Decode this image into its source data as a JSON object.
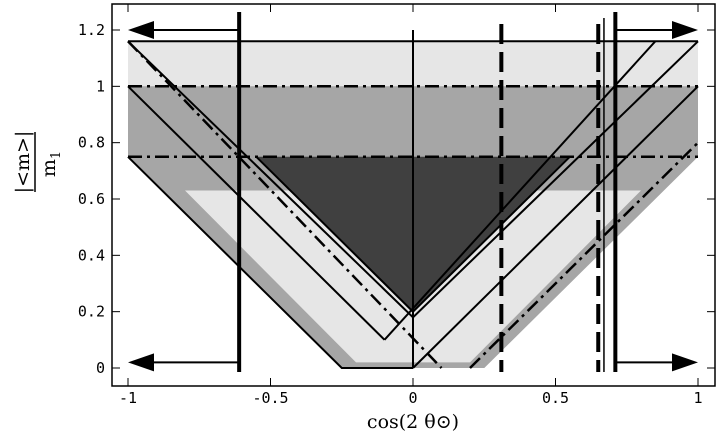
{
  "chart_data": {
    "type": "area",
    "xlabel": "cos(2 θ⊙)",
    "ylabel_numerator": "|<m>|",
    "ylabel_denominator": "m",
    "ylabel_subscript": "1",
    "xlim": [
      -1,
      1
    ],
    "ylim": [
      0,
      1.2
    ],
    "x_ticks": [
      -1,
      -0.5,
      0,
      0.5,
      1
    ],
    "x_tick_labels": [
      "-1",
      "-0.5",
      "0",
      "0.5",
      "1"
    ],
    "y_ticks": [
      0,
      0.2,
      0.4,
      0.6,
      0.8,
      1,
      1.2
    ],
    "y_tick_labels": [
      "0",
      "0.2",
      "0.4",
      "0.6",
      "0.8",
      "1",
      "1.2"
    ],
    "grid": false,
    "colors": {
      "light_band": "#e6e6e6",
      "medium_band": "#a6a6a6",
      "dark_band": "#404040",
      "lines": "#000000"
    },
    "regions": [
      {
        "name": "light-region",
        "fill": "light_band",
        "points": [
          [
            -1,
            1.16
          ],
          [
            1,
            1.16
          ],
          [
            1,
            0
          ],
          [
            -1,
            0
          ]
        ]
      },
      {
        "name": "white-triangle-left",
        "fill": "white",
        "points": [
          [
            -1,
            0
          ],
          [
            -1,
            0.75
          ],
          [
            -0.2,
            0
          ]
        ]
      },
      {
        "name": "white-triangle-right",
        "fill": "white",
        "points": [
          [
            0.2,
            0
          ],
          [
            1,
            0.75
          ],
          [
            1,
            0
          ]
        ]
      },
      {
        "name": "medium-region",
        "fill": "medium_band",
        "points": [
          [
            -1,
            1
          ],
          [
            1,
            1
          ],
          [
            1,
            0.75
          ],
          [
            0.25,
            0
          ],
          [
            -0.25,
            0
          ],
          [
            -1,
            0.75
          ]
        ]
      },
      {
        "name": "light-middle-region",
        "fill": "light_band",
        "points": [
          [
            -0.2,
            0.02
          ],
          [
            0.2,
            0.02
          ],
          [
            0.8,
            0.63
          ],
          [
            -0.8,
            0.63
          ]
        ]
      },
      {
        "name": "dark-region",
        "fill": "dark_band",
        "points": [
          [
            -0.55,
            0.75
          ],
          [
            0.55,
            0.75
          ],
          [
            0,
            0.2
          ]
        ]
      }
    ],
    "solid_lines": [
      [
        [
          -1,
          1.16
        ],
        [
          0,
          0.18
        ],
        [
          1,
          1.16
        ]
      ],
      [
        [
          -1,
          1.16
        ],
        [
          1,
          1.16
        ]
      ],
      [
        [
          -1,
          1
        ],
        [
          -0.1,
          0.1
        ]
      ],
      [
        [
          -1,
          0.75
        ],
        [
          -0.25,
          0
        ],
        [
          0,
          0
        ]
      ],
      [
        [
          0,
          0
        ],
        [
          1,
          1
        ]
      ],
      [
        [
          -0.1,
          0.1
        ],
        [
          0.85,
          1.16
        ]
      ],
      [
        [
          -0.55,
          0.75
        ],
        [
          0,
          0.2
        ],
        [
          0.55,
          0.75
        ]
      ],
      [
        [
          0,
          0
        ],
        [
          0,
          1.2
        ]
      ]
    ],
    "dash_dot_lines": [
      [
        [
          -1,
          1.16
        ],
        [
          0.1,
          0
        ]
      ],
      [
        [
          -1,
          1
        ],
        [
          1,
          1
        ]
      ],
      [
        [
          -1,
          0.75
        ],
        [
          1,
          0.75
        ]
      ],
      [
        [
          0.2,
          0
        ],
        [
          0.55,
          0.35
        ],
        [
          1,
          0.8
        ]
      ]
    ],
    "vertical_markers": [
      {
        "x": -0.61,
        "style": "thick-solid"
      },
      {
        "x": 0.31,
        "style": "thick-dashed"
      },
      {
        "x": 0.65,
        "style": "thick-dashed"
      },
      {
        "x": 0.67,
        "style": "thin-solid"
      },
      {
        "x": 0.71,
        "style": "thick-solid"
      }
    ],
    "arrows": [
      {
        "from_x": -0.61,
        "to_x": -1,
        "y": 1.2
      },
      {
        "from_x": -0.61,
        "to_x": -1,
        "y": 0.02
      },
      {
        "from_x": 0.71,
        "to_x": 1,
        "y": 1.2
      },
      {
        "from_x": 0.71,
        "to_x": 1,
        "y": 0.02
      }
    ]
  }
}
